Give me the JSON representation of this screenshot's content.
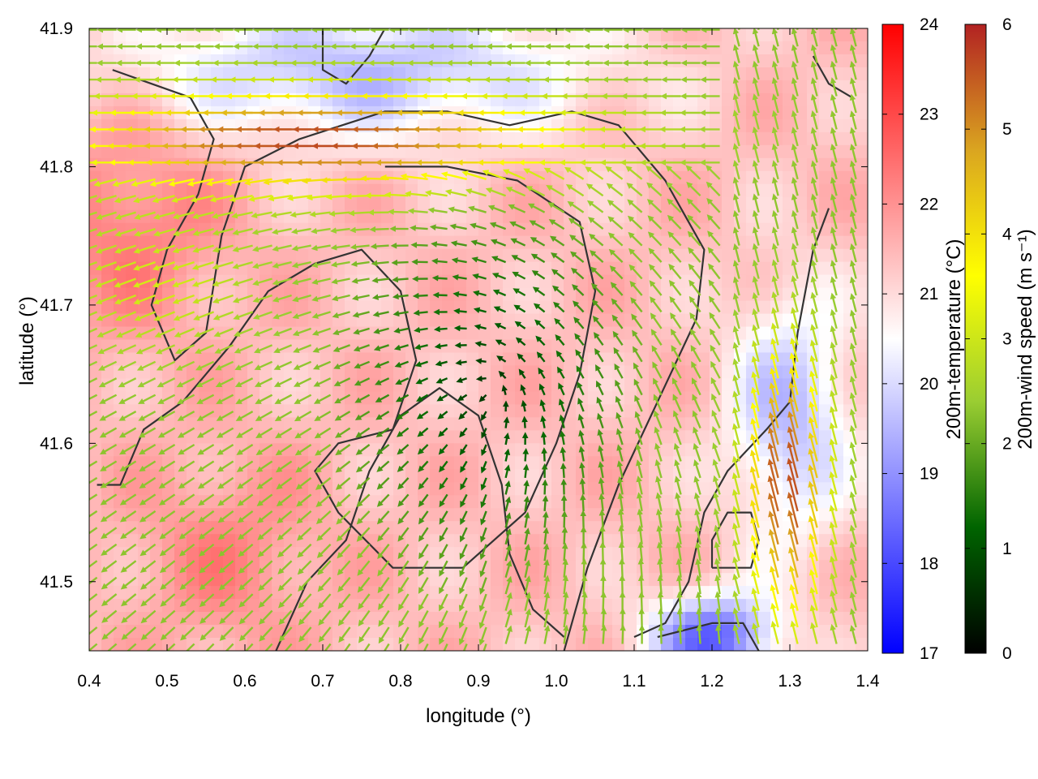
{
  "chart_data": {
    "type": "heatmap",
    "overlay": "vector-field",
    "xlabel": "longitude (°)",
    "ylabel": "latitude (°)",
    "xlim": [
      0.4,
      1.4
    ],
    "ylim": [
      41.45,
      41.9
    ],
    "x_ticks": [
      "0.4",
      "0.5",
      "0.6",
      "0.7",
      "0.8",
      "0.9",
      "1.0",
      "1.1",
      "1.2",
      "1.3",
      "1.4"
    ],
    "y_ticks": [
      "41.5",
      "41.6",
      "41.7",
      "41.8",
      "41.9"
    ],
    "grid": false,
    "temperature_colorbar": {
      "label": "200m-temperature (°C)",
      "range": [
        17,
        24
      ],
      "ticks": [
        "17",
        "18",
        "19",
        "20",
        "21",
        "22",
        "23",
        "24"
      ],
      "colors": [
        "#0000ff",
        "#ffffff",
        "#ff0000"
      ]
    },
    "wind_colorbar": {
      "label": "200m-wind speed (m s⁻¹)",
      "range": [
        0,
        6
      ],
      "ticks": [
        "0",
        "1",
        "2",
        "3",
        "4",
        "5",
        "6"
      ],
      "colors": [
        "#000000",
        "#006400",
        "#9acd32",
        "#ffff00",
        "#daa520",
        "#b22222"
      ]
    },
    "approximate_fields": {
      "temperature_regions_degC": [
        {
          "description": "west / northwest",
          "value": 22.3
        },
        {
          "description": "southwest",
          "value": 22.0
        },
        {
          "description": "centre",
          "value": 21.4
        },
        {
          "description": "north strip",
          "value": 19.6
        },
        {
          "description": "east",
          "value": 19.6
        },
        {
          "description": "southeast",
          "value": 18.3
        }
      ],
      "wind_regions_ms": [
        {
          "description": "north jet",
          "value": 5.7
        },
        {
          "description": "east jet",
          "value": 5.7
        },
        {
          "description": "centre",
          "value": 0.6
        },
        {
          "description": "mid ring",
          "value": 2.3
        }
      ]
    }
  }
}
